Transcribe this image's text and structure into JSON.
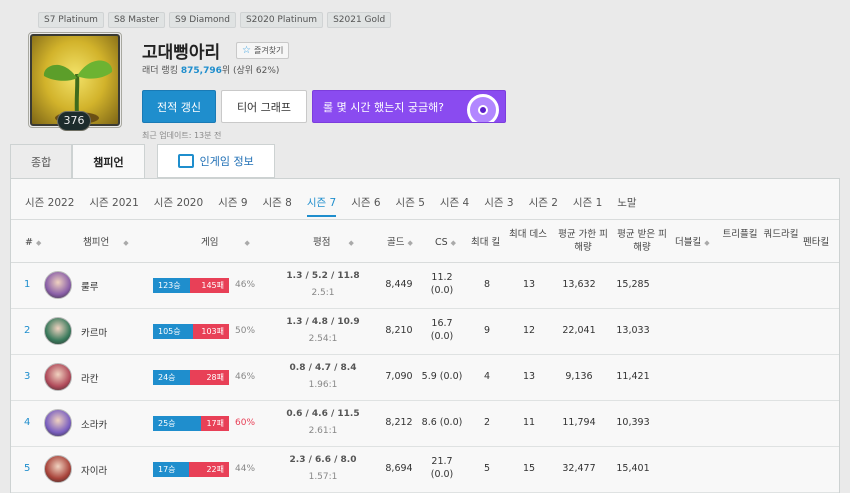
{
  "tiers": [
    "S7 Platinum",
    "S8 Master",
    "S9 Diamond",
    "S2020 Platinum",
    "S2021 Gold"
  ],
  "profile": {
    "name": "고대뻥아리",
    "favorite_label": "즐겨찾기",
    "ladder_prefix": "래더 랭킹",
    "ladder_rank": "875,796",
    "ladder_suffix": "위 (상위 62%)",
    "level": "376",
    "updated": "최근 업데이트: 13분 전"
  },
  "buttons": {
    "renew": "전적 갱신",
    "tier_graph": "티어 그래프",
    "promo": "롤 몇 시간 했는지 궁금해?"
  },
  "tabs": {
    "overview": "종합",
    "champions": "챔피언",
    "ingame": "인게임 정보"
  },
  "seasons": [
    "시즌 2022",
    "시즌 2021",
    "시즌 2020",
    "시즌 9",
    "시즌 8",
    "시즌 7",
    "시즌 6",
    "시즌 5",
    "시즌 4",
    "시즌 3",
    "시즌 2",
    "시즌 1",
    "노말"
  ],
  "active_season": "시즌 7",
  "headers": {
    "no": "#",
    "champion": "챔피언",
    "games": "게임",
    "kda": "평점",
    "gold": "골드",
    "cs": "CS",
    "max_kill": "최대 킬",
    "max_death": "최대 데스",
    "avg_dealt": "평균 가한 피해량",
    "avg_taken": "평균 받은 피해량",
    "double": "더블킬",
    "triple": "트리플킬",
    "quadra": "쿼드라킬",
    "penta": "펜타킬"
  },
  "rows": [
    {
      "no": "1",
      "champion": "룰루",
      "wins": "123승",
      "losses": "145패",
      "win_frac": 0.46,
      "winrate": "46%",
      "winrate_red": false,
      "kda": "1.3 / 5.2 / 11.8",
      "ratio": "2.5:1",
      "gold": "8,449",
      "cs": "11.2",
      "cs_sub": "(0.0)",
      "max_kill": "8",
      "max_death": "13",
      "dealt": "13,632",
      "taken": "15,285",
      "icon_color": "#8a5fa8"
    },
    {
      "no": "2",
      "champion": "카르마",
      "wins": "105승",
      "losses": "103패",
      "win_frac": 0.5,
      "winrate": "50%",
      "winrate_red": false,
      "kda": "1.3 / 4.8 / 10.9",
      "ratio": "2.54:1",
      "gold": "8,210",
      "cs": "16.7",
      "cs_sub": "(0.0)",
      "max_kill": "9",
      "max_death": "12",
      "dealt": "22,041",
      "taken": "13,033",
      "icon_color": "#3a7a5c"
    },
    {
      "no": "3",
      "champion": "라칸",
      "wins": "24승",
      "losses": "28패",
      "win_frac": 0.46,
      "winrate": "46%",
      "winrate_red": false,
      "kda": "0.8 / 4.7 / 8.4",
      "ratio": "1.96:1",
      "gold": "7,090",
      "cs": "5.9 (0.0)",
      "cs_sub": "",
      "max_kill": "4",
      "max_death": "13",
      "dealt": "9,136",
      "taken": "11,421",
      "icon_color": "#b04a5a"
    },
    {
      "no": "4",
      "champion": "소라카",
      "wins": "25승",
      "losses": "17패",
      "win_frac": 0.6,
      "winrate": "60%",
      "winrate_red": true,
      "kda": "0.6 / 4.6 / 11.5",
      "ratio": "2.61:1",
      "gold": "8,212",
      "cs": "8.6 (0.0)",
      "cs_sub": "",
      "max_kill": "2",
      "max_death": "11",
      "dealt": "11,794",
      "taken": "10,393",
      "icon_color": "#7a5fc0"
    },
    {
      "no": "5",
      "champion": "자이라",
      "wins": "17승",
      "losses": "22패",
      "win_frac": 0.44,
      "winrate": "44%",
      "winrate_red": false,
      "kda": "2.3 / 6.6 / 8.0",
      "ratio": "1.57:1",
      "gold": "8,694",
      "cs": "21.7",
      "cs_sub": "(0.0)",
      "max_kill": "5",
      "max_death": "15",
      "dealt": "32,477",
      "taken": "15,401",
      "icon_color": "#a8433a"
    }
  ],
  "colors": {
    "accent": "#1f8ecd",
    "loss": "#e84057",
    "promo": "#8a4bf0"
  }
}
